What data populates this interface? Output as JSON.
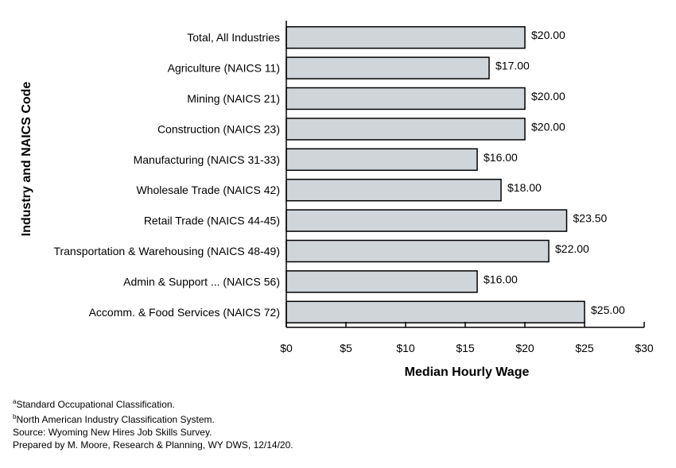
{
  "chart_data": {
    "type": "bar",
    "orientation": "horizontal",
    "categories": [
      "Total, All Industries",
      "Agriculture (NAICS 11)",
      "Mining (NAICS 21)",
      "Construction (NAICS 23)",
      "Manufacturing (NAICS 31-33)",
      "Wholesale Trade (NAICS 42)",
      "Retail Trade (NAICS 44-45)",
      "Transportation & Warehousing (NAICS 48-49)",
      "Admin & Support ... (NAICS 56)",
      "Accomm. & Food Services (NAICS 72)"
    ],
    "values": [
      20,
      17,
      20,
      20,
      16,
      18,
      23.5,
      22,
      16,
      25
    ],
    "value_labels": [
      "$20.00",
      "$17.00",
      "$20.00",
      "$20.00",
      "$16.00",
      "$18.00",
      "$23.50",
      "$22.00",
      "$16.00",
      "$25.00"
    ],
    "xlabel": "Median Hourly Wage",
    "ylabel": "Industry and NAICS Code",
    "xlim": [
      0,
      30
    ],
    "x_ticks": [
      0,
      5,
      10,
      15,
      20,
      25,
      30
    ],
    "x_tick_labels": [
      "$0",
      "$5",
      "$10",
      "$15",
      "$20",
      "$25",
      "$30"
    ],
    "grid": false,
    "legend": "none",
    "colors": {
      "bar_fill": "#d0d5da",
      "bar_stroke": "#000000"
    }
  },
  "footnotes": {
    "a_marker": "a",
    "a_text": "Standard Occupational Classification.",
    "b_marker": "b",
    "b_text": "North American Industry Classification System.",
    "source": "Source: Wyoming New Hires Job Skills Survey.",
    "prepared": "Prepared by M. Moore, Research & Planning, WY DWS, 12/14/20."
  }
}
